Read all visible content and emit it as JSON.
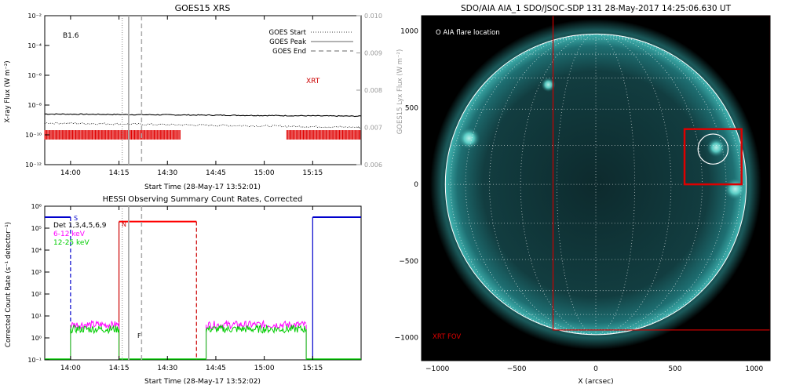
{
  "chart_data": [
    {
      "type": "line",
      "title": "GOES15 XRS",
      "xlabel": "Start Time (28-May-17 13:52:01)",
      "ylabel": "X-ray Flux (W m⁻²)",
      "ylabel_right": "GOES15 Lyx Flux (W m⁻²)",
      "x_ticks": [
        "14:00",
        "14:15",
        "14:30",
        "14:45",
        "15:00",
        "15:15"
      ],
      "x_tick_minutes": [
        8,
        23,
        38,
        53,
        68,
        83
      ],
      "xlim_minutes": [
        0,
        98
      ],
      "y_scale": "log",
      "y_ticks": [
        "10⁻²",
        "10⁻⁴",
        "10⁻⁶",
        "10⁻⁸",
        "10⁻¹⁰",
        "10⁻¹²"
      ],
      "y_tick_exponents": [
        -2,
        -4,
        -6,
        -8,
        -10,
        -12
      ],
      "ylim_exponent": [
        -12,
        -2
      ],
      "y_right_ticks": [
        "0.010",
        "0.009",
        "0.008",
        "0.007",
        "0.006"
      ],
      "ylim_right": [
        0.006,
        0.01
      ],
      "class_label": "B1.6",
      "xrt_label": "XRT",
      "legend": [
        {
          "name": "GOES Start",
          "style": "dotted"
        },
        {
          "name": "GOES Peak",
          "style": "solid"
        },
        {
          "name": "GOES End",
          "style": "dashed"
        }
      ],
      "legend_placement": "top-right",
      "event_lines_minutes": {
        "start": 24,
        "peak": 26,
        "end": 30
      },
      "series": [
        {
          "style": "solid",
          "level_exponent": -8.6
        },
        {
          "style": "dotted",
          "level_exponent": -9.2
        }
      ],
      "xrt_segments_minutes": [
        [
          0,
          42
        ],
        [
          75,
          98
        ]
      ],
      "xrt_level_exponent": -10
    },
    {
      "type": "line",
      "title": "HESSI Observing Summary Count Rates, Corrected",
      "xlabel": "Start Time (28-May-17 13:52:02)",
      "ylabel": "Corrected Count Rate (s⁻¹ detector⁻¹)",
      "x_ticks": [
        "14:00",
        "14:15",
        "14:30",
        "14:45",
        "15:00",
        "15:15"
      ],
      "x_tick_minutes": [
        8,
        23,
        38,
        53,
        68,
        83
      ],
      "xlim_minutes": [
        0,
        98
      ],
      "y_scale": "log",
      "y_ticks": [
        "10⁶",
        "10⁵",
        "10⁴",
        "10³",
        "10²",
        "10¹",
        "10⁰",
        "10⁻¹"
      ],
      "y_tick_exponents": [
        6,
        5,
        4,
        3,
        2,
        1,
        0,
        -1
      ],
      "ylim_exponent": [
        -1,
        6
      ],
      "legend": [
        {
          "name": "Det 1,3,4,5,6,9",
          "color": "#000000"
        },
        {
          "name": "6-12 keV",
          "color": "#ff00ff"
        },
        {
          "name": "12-25 keV",
          "color": "#00cc00"
        }
      ],
      "legend_placement": "top-left",
      "annotations": [
        {
          "text": "S",
          "x_minutes": 15
        },
        {
          "text": "N",
          "x_minutes": 23
        },
        {
          "text": "F",
          "x_minutes": 24
        }
      ],
      "event_lines_minutes": {
        "start": 24,
        "peak": 26,
        "end": 30
      },
      "state_bars": [
        {
          "name": "SAA",
          "color": "#0000cc",
          "x_minutes": [
            0,
            8
          ],
          "level_exponent": 5.5
        },
        {
          "name": "Night",
          "color": "#ff0000",
          "x_minutes": [
            23,
            47
          ],
          "level_exponent": 5.3
        },
        {
          "name": "SAA",
          "color": "#0000cc",
          "x_minutes": [
            83,
            98
          ],
          "level_exponent": 5.5
        }
      ],
      "series": [
        {
          "name": "6-12 keV",
          "color": "#ff00ff",
          "segments_minutes": [
            [
              8,
              23
            ],
            [
              50,
              81
            ]
          ],
          "level_exponent": 0.6
        },
        {
          "name": "12-25 keV",
          "color": "#00cc00",
          "segments_minutes": [
            [
              8,
              23
            ],
            [
              50,
              81
            ]
          ],
          "level_exponent": 0.4
        }
      ],
      "background_level_exponent": -1
    },
    {
      "type": "heatmap",
      "title": "SDO/AIA AIA_1 SDO/JSOC-SDP 131 28-May-2017 14:25:06.630 UT",
      "xlabel": "X (arcsec)",
      "ylabel": "",
      "x_ticks": [
        "−1000",
        "−500",
        "0",
        "500",
        "1000"
      ],
      "x_tick_values": [
        -1000,
        -500,
        0,
        500,
        1000
      ],
      "y_ticks": [
        "1000",
        "500",
        "0",
        "−500",
        "−1000"
      ],
      "y_tick_values": [
        1000,
        500,
        0,
        -500,
        -1000
      ],
      "xlim": [
        -1100,
        1100
      ],
      "ylim": [
        -1150,
        1100
      ],
      "colormap": "teal",
      "legend_text": "O AIA flare location",
      "fov_label": "XRT FOV",
      "solar_radius_arcsec": 950,
      "xrt_fov": {
        "x": [
          -270,
          1100
        ],
        "y": [
          -950,
          1100
        ]
      },
      "flare_box": {
        "x": [
          560,
          920
        ],
        "y": [
          0,
          360
        ]
      },
      "flare_circle": {
        "x": 740,
        "y": 230,
        "r": 95
      },
      "grid_spacing_deg": 15
    }
  ]
}
